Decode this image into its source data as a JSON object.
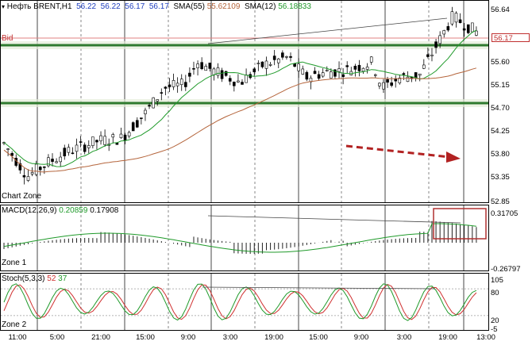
{
  "main_panel": {
    "symbol_prefix": "▾",
    "symbol": "Нефть BRENT,H1",
    "ohlc": [
      "56.22",
      "56.22",
      "56.17",
      "56.17"
    ],
    "sma55_label": "SMA(55)",
    "sma55_value": "55.62109",
    "sma12_label": "SMA(12)",
    "sma12_value": "56.18833",
    "bid_label": "Bid",
    "zone_label": "Chart Zone",
    "current_price": "56.17",
    "price_ticks": [
      "56.64",
      "55.60",
      "55.15",
      "54.70",
      "54.25",
      "53.80",
      "53.35",
      "52.85"
    ]
  },
  "macd_panel": {
    "title": "MACD(12,26,9)",
    "main_value": "0.20859",
    "signal_value": "0.17908",
    "zone_label": "Zone 1",
    "ticks": [
      "0.31705",
      "-0.26797"
    ]
  },
  "stoch_panel": {
    "title": "Stoch(5,3,3)",
    "k_value": "52",
    "d_value": "37",
    "zone_label": "Zone 2",
    "ticks": [
      "105",
      "80",
      "20",
      "-5"
    ]
  },
  "time_axis": [
    "11:00",
    "5:00",
    "21:00",
    "15:00",
    "9:00",
    "3:00",
    "19:00",
    "15:00",
    "9:00",
    "3:00",
    "19:00",
    "13:00"
  ],
  "colors": {
    "value_blue": "#1f3fbf",
    "sma55": "#b5653c",
    "sma12": "#1f9a2a",
    "bid_line": "#e08080",
    "zone_green": "#2f7a2f",
    "highlight_red": "#b03030",
    "arrow_red": "#b22222",
    "stoch_k": "#1f9a2a",
    "stoch_d": "#d03030"
  }
}
